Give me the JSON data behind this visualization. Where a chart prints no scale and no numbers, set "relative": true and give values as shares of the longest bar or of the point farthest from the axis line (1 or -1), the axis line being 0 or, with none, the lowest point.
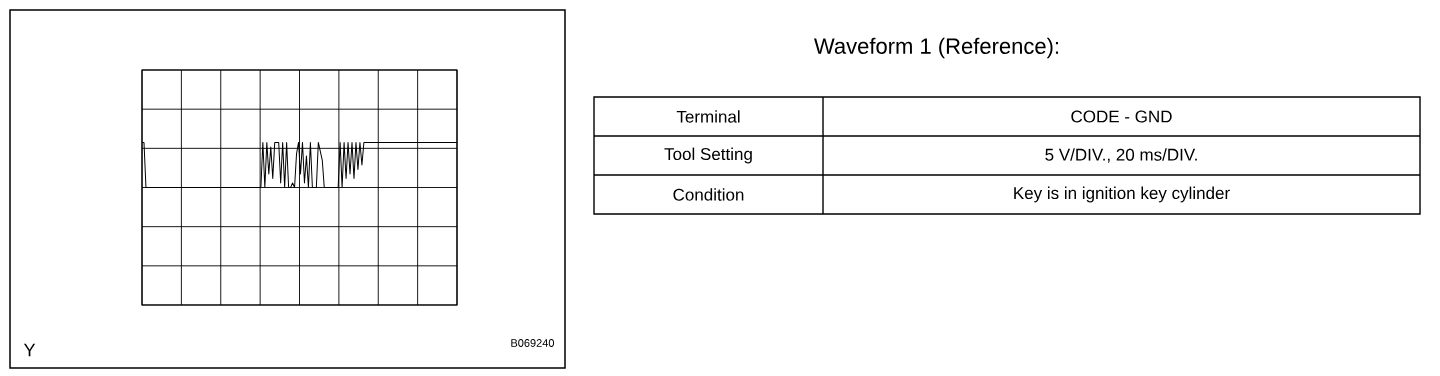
{
  "chart_data": {
    "type": "line",
    "relative": true,
    "grid": true,
    "title": "Waveform 1 (Reference):",
    "annotations": [
      "Terminal",
      "CODE - GND",
      "Tool Setting",
      "5 V/DIV., 20 ms/DIV.",
      "Condition",
      "Key is in ignition key cylinder",
      "Y",
      "B069240"
    ],
    "categories": [
      null,
      null,
      null,
      null,
      null,
      null,
      null,
      null,
      null,
      null,
      null,
      null,
      null,
      null,
      null,
      null,
      null,
      null,
      null,
      null,
      null,
      null,
      null,
      null,
      null,
      null,
      null,
      null,
      null,
      null,
      null,
      null,
      null,
      null,
      null,
      null,
      null,
      null,
      null,
      null,
      null,
      null,
      null,
      null,
      null,
      null,
      null,
      null,
      null,
      null,
      null,
      null,
      null,
      null,
      null,
      null,
      null,
      null,
      null,
      null,
      null,
      null,
      null,
      null,
      null,
      null,
      null,
      null,
      null,
      null,
      null,
      null,
      null,
      null,
      null,
      null,
      null,
      null,
      null,
      null,
      null,
      null,
      null,
      null,
      null,
      null,
      null,
      null,
      null,
      null,
      null,
      null,
      null,
      null,
      null,
      null,
      null,
      null,
      null,
      null,
      null,
      null,
      null,
      null,
      null,
      null,
      null,
      null,
      null,
      null,
      null,
      null,
      null,
      null,
      null,
      null,
      null,
      null,
      null,
      null,
      null,
      null,
      null,
      null,
      null,
      null,
      null,
      null,
      null,
      null,
      null,
      null,
      null,
      null,
      null,
      null,
      null,
      null,
      null,
      null,
      null,
      null,
      null,
      null,
      null,
      null,
      null,
      null,
      null,
      null,
      null,
      null,
      null,
      null,
      null,
      null,
      null,
      null,
      null,
      null
    ],
    "series": [
      {
        "color": "#000000",
        "values": [
          1,
          1,
          0,
          0,
          0,
          0,
          0,
          0,
          0,
          0,
          0,
          0,
          0,
          0,
          0,
          0,
          0,
          0,
          0,
          0,
          0,
          0,
          0,
          0,
          0,
          0,
          0,
          0,
          0,
          0,
          0,
          0,
          0,
          0,
          0,
          0,
          0,
          0,
          0,
          0,
          0,
          0,
          0,
          0,
          0,
          0,
          0,
          0,
          0,
          0,
          0,
          0,
          0,
          0,
          0,
          0,
          0,
          0,
          0,
          0,
          0,
          1,
          0,
          1,
          0.3,
          0.9,
          0.2,
          1,
          1,
          1,
          0.1,
          1,
          0,
          1,
          0,
          0,
          0.1,
          0,
          0.75,
          1,
          0.3,
          1,
          0.1,
          0.7,
          0,
          1,
          0,
          0,
          0,
          1,
          0.8,
          0.6,
          0,
          0,
          0,
          0,
          0,
          0,
          0,
          0,
          1,
          0,
          1,
          0.2,
          1,
          0.3,
          1,
          0.2,
          1,
          0.4,
          1,
          0.5,
          1,
          1,
          1,
          1,
          1,
          1,
          1,
          1,
          1,
          1,
          1,
          1,
          1,
          1,
          1,
          1,
          1,
          1,
          1,
          1,
          1,
          1,
          1,
          1,
          1,
          1,
          1,
          1,
          1,
          1,
          1,
          1,
          1,
          1,
          1,
          1,
          1,
          1,
          1,
          1,
          1,
          1,
          1,
          1,
          1,
          1,
          1,
          1
        ]
      }
    ]
  }
}
